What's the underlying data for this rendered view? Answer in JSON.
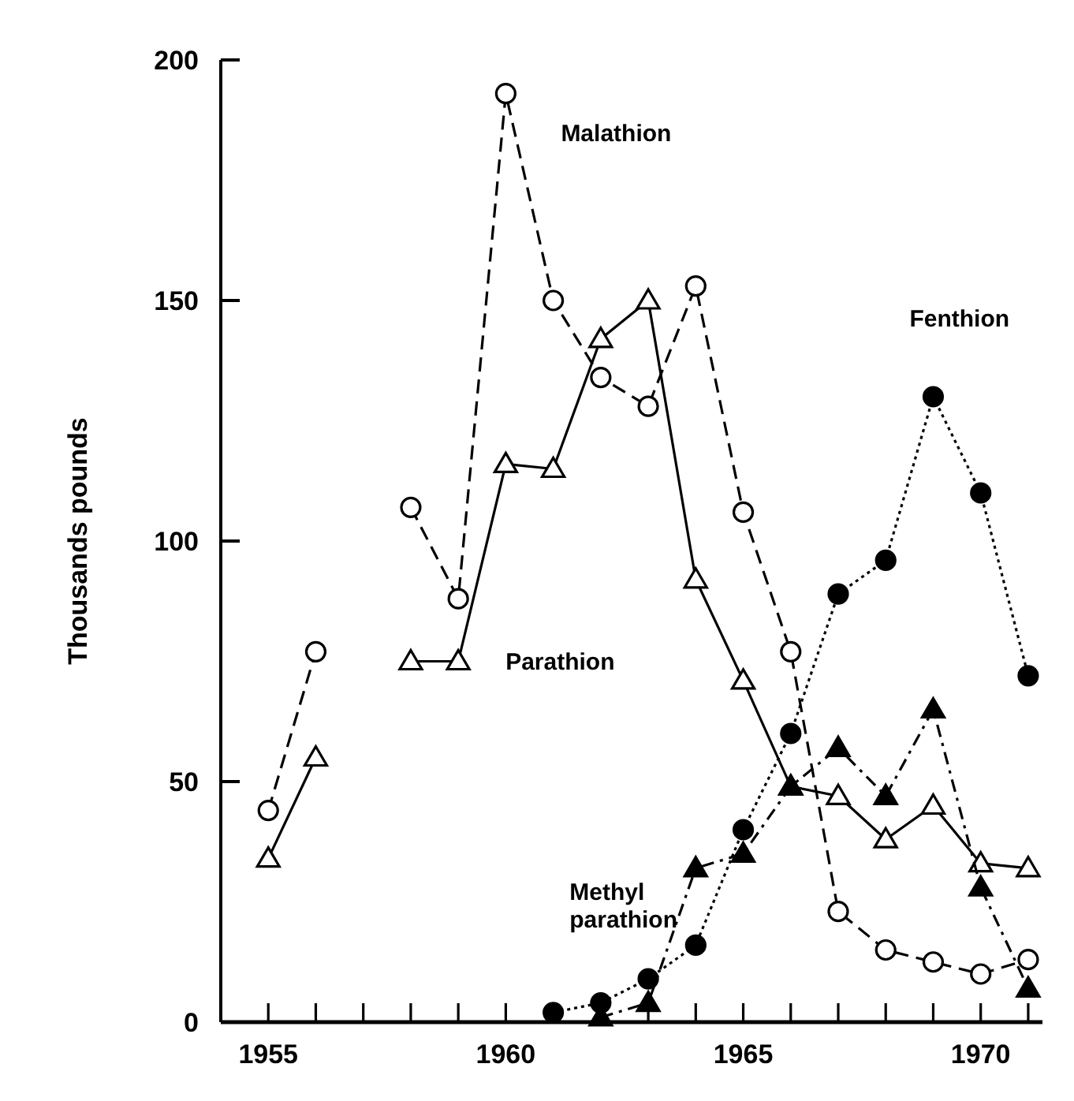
{
  "chart_data": {
    "type": "line",
    "ylabel": "Thousands pounds",
    "x": [
      1955,
      1956,
      1957,
      1958,
      1959,
      1960,
      1961,
      1962,
      1963,
      1964,
      1965,
      1966,
      1967,
      1968,
      1969,
      1970,
      1971
    ],
    "xlim": [
      1954,
      1971.3
    ],
    "ylim": [
      0,
      200
    ],
    "xticks": [
      1955,
      {
        "value": 1956,
        "label": null
      },
      {
        "value": 1957,
        "label": null
      },
      {
        "value": 1958,
        "label": null
      },
      {
        "value": 1959,
        "label": null
      },
      1960,
      {
        "value": 1961,
        "label": null
      },
      {
        "value": 1962,
        "label": null
      },
      {
        "value": 1963,
        "label": null
      },
      {
        "value": 1964,
        "label": null
      },
      1965,
      {
        "value": 1966,
        "label": null
      },
      {
        "value": 1967,
        "label": null
      },
      {
        "value": 1968,
        "label": null
      },
      {
        "value": 1969,
        "label": null
      },
      1970,
      {
        "value": 1971,
        "label": null
      }
    ],
    "yticks": [
      0,
      50,
      100,
      150,
      200
    ],
    "series": [
      {
        "name": "Malathion",
        "color": "#000000",
        "marker": "circle",
        "line_style": "dashed",
        "values": [
          44,
          77,
          null,
          107,
          88,
          193,
          150,
          134,
          128,
          153,
          106,
          77,
          23,
          15,
          12.5,
          10,
          13
        ]
      },
      {
        "name": "Parathion",
        "color": "#000000",
        "marker": "triangle",
        "line_style": "solid",
        "values": [
          34,
          55,
          null,
          75,
          75,
          116,
          115,
          142,
          150,
          92,
          71,
          49,
          47,
          38,
          45,
          33,
          32
        ]
      },
      {
        "name": "Fenthion",
        "color": "#000000",
        "marker": "circle",
        "line_style": "dotted",
        "x": [
          1961,
          1962,
          1963,
          1964,
          1965,
          1966,
          1967,
          1968,
          1969,
          1970,
          1971
        ],
        "values": [
          2,
          4,
          9,
          16,
          40,
          60,
          89,
          96,
          130,
          110,
          72
        ]
      },
      {
        "name": "Methyl\nparathion",
        "color": "#000000",
        "marker": "triangle",
        "line_style": "dashdot",
        "x": [
          1962,
          1963,
          1964,
          1965,
          1966,
          1967,
          1968,
          1969,
          1970,
          1971
        ],
        "values": [
          1,
          4,
          32,
          35,
          49,
          57,
          47,
          65,
          28,
          7
        ]
      }
    ]
  }
}
